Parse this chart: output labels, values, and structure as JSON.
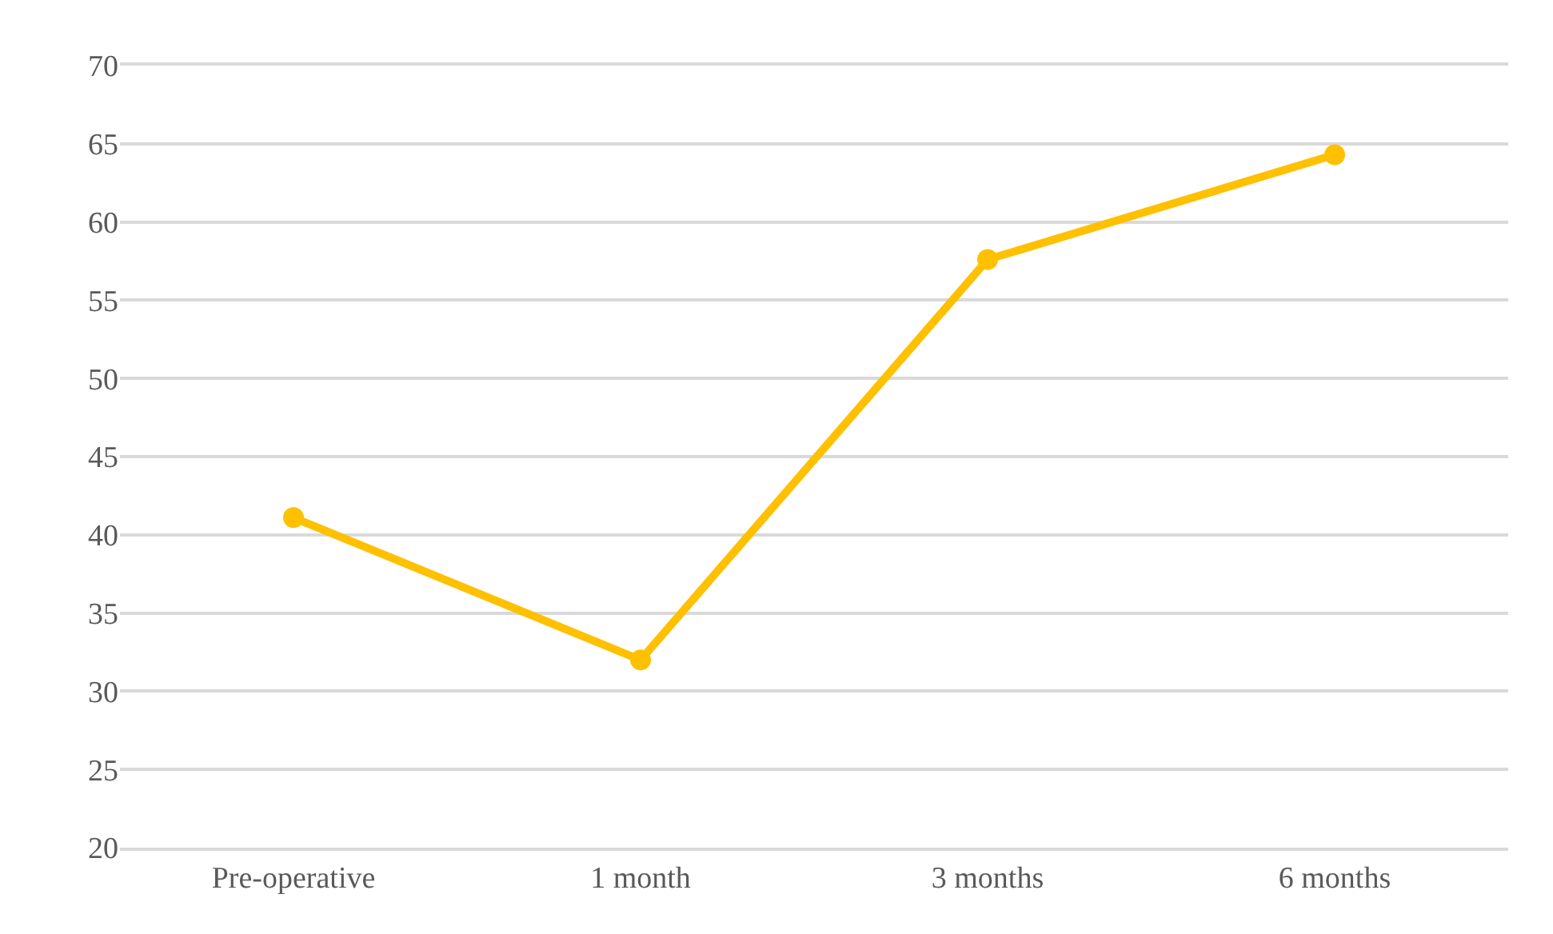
{
  "chart_data": {
    "type": "line",
    "categories": [
      "Pre-operative",
      "1 month",
      "3 months",
      "6 months"
    ],
    "series": [
      {
        "color": "#ffc000",
        "values": [
          41.1,
          32.0,
          57.6,
          64.3
        ]
      }
    ],
    "ylim": [
      20,
      70
    ],
    "yticks": [
      20,
      25,
      30,
      35,
      40,
      45,
      50,
      55,
      60,
      65,
      70
    ],
    "grid": "y",
    "marker": "circle",
    "line_style": "solid"
  }
}
